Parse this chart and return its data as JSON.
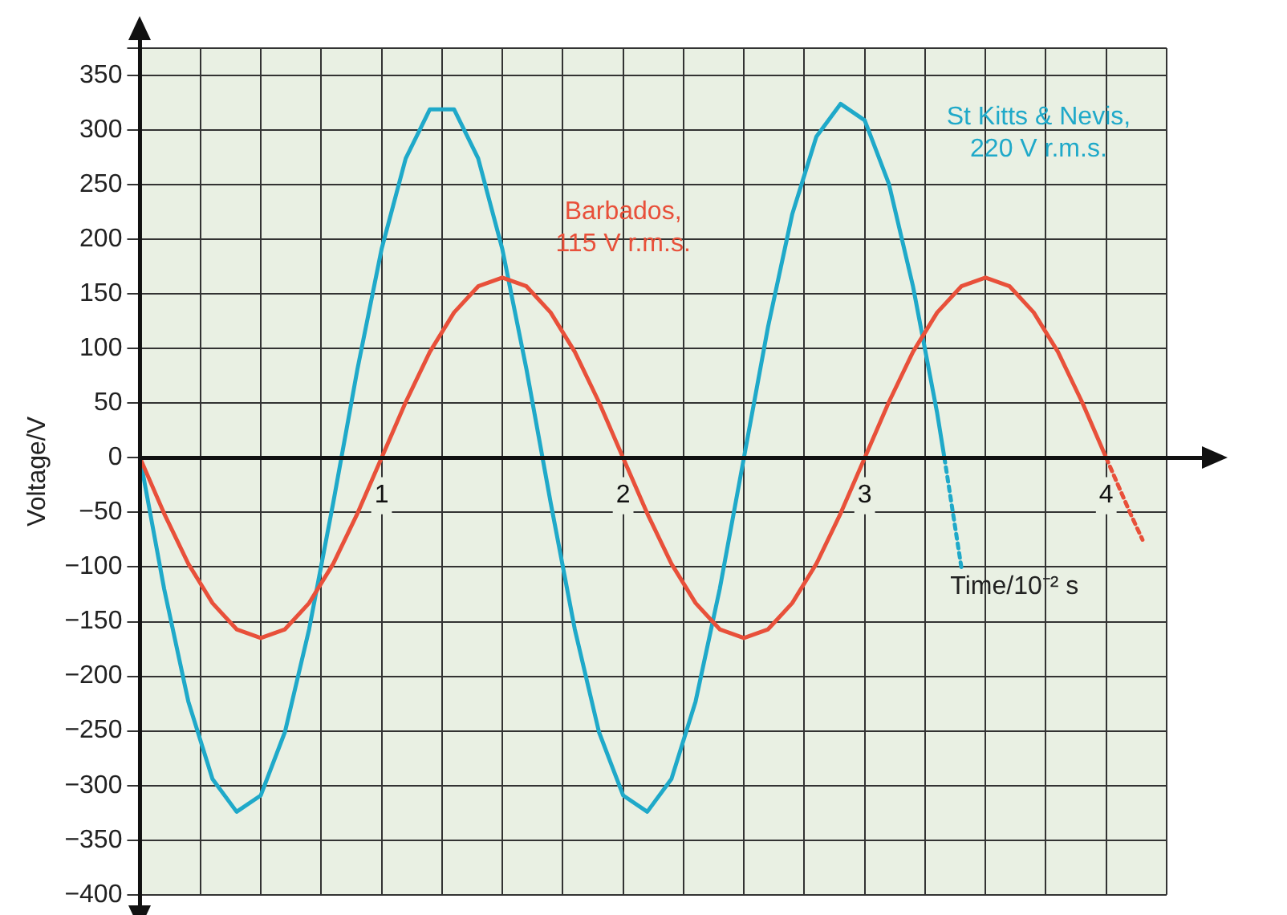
{
  "chart_data": {
    "type": "line",
    "xlabel": "Time/10⁻² s",
    "ylabel": "Voltage/V",
    "xlim": [
      0,
      4.25
    ],
    "ylim": [
      -400,
      375
    ],
    "xticks": [
      {
        "value": 0,
        "label": null
      },
      {
        "value": 0.25,
        "label": null
      },
      {
        "value": 0.5,
        "label": null
      },
      {
        "value": 0.75,
        "label": null
      },
      1,
      {
        "value": 1.25,
        "label": null
      },
      {
        "value": 1.5,
        "label": null
      },
      {
        "value": 1.75,
        "label": null
      },
      2,
      {
        "value": 2.25,
        "label": null
      },
      {
        "value": 2.5,
        "label": null
      },
      {
        "value": 2.75,
        "label": null
      },
      3,
      {
        "value": 3.25,
        "label": null
      },
      {
        "value": 3.5,
        "label": null
      },
      {
        "value": 3.75,
        "label": null
      },
      4,
      {
        "value": 4.25,
        "label": null
      }
    ],
    "yticks": [
      -400,
      -350,
      -300,
      -250,
      -200,
      -150,
      -100,
      -50,
      0,
      50,
      100,
      150,
      200,
      250,
      300,
      350,
      {
        "value": 375,
        "label": null
      }
    ],
    "grid": true,
    "legend": false,
    "marker": "none",
    "series": [
      {
        "name": "Barbados, 115 V r.m.s.",
        "color": "#e8503a",
        "line_style": "solid",
        "x": [
          0,
          0.1,
          0.2,
          0.3,
          0.4,
          0.5,
          0.6,
          0.7,
          0.8,
          0.9,
          1.0,
          1.1,
          1.2,
          1.3,
          1.4,
          1.5,
          1.6,
          1.7,
          1.8,
          1.9,
          2.0,
          2.1,
          2.2,
          2.3,
          2.4,
          2.5,
          2.6,
          2.7,
          2.8,
          2.9,
          3.0,
          3.1,
          3.2,
          3.3,
          3.4,
          3.5,
          3.6,
          3.7,
          3.8,
          3.9,
          4.0
        ],
        "values": [
          0,
          -51,
          -97,
          -133,
          -157,
          -165,
          -157,
          -133,
          -97,
          -51,
          0,
          51,
          97,
          133,
          157,
          165,
          157,
          133,
          97,
          51,
          0,
          -51,
          -97,
          -133,
          -157,
          -165,
          -157,
          -133,
          -97,
          -51,
          0,
          51,
          97,
          133,
          157,
          165,
          157,
          133,
          97,
          51,
          0
        ]
      },
      {
        "color": "#e8503a",
        "line_style": "dashed",
        "x": [
          4.0,
          4.1,
          4.15
        ],
        "values": [
          0,
          -51,
          -75
        ]
      },
      {
        "name": "St Kitts & Nevis, 220 V r.m.s.",
        "color": "#1fa9c9",
        "line_style": "solid",
        "x": [
          0,
          0.1,
          0.2,
          0.3,
          0.4,
          0.5,
          0.6,
          0.7,
          0.8,
          0.9,
          1.0,
          1.1,
          1.2,
          1.3,
          1.4,
          1.5,
          1.6,
          1.7,
          1.8,
          1.9,
          2.0,
          2.1,
          2.2,
          2.3,
          2.4,
          2.5,
          2.6,
          2.7,
          2.8,
          2.9,
          3.0,
          3.1,
          3.2,
          3.3,
          3.33
        ],
        "values": [
          0,
          -120,
          -223,
          -294,
          -324,
          -309,
          -251,
          -157,
          -41,
          81,
          191,
          274,
          319,
          319,
          274,
          191,
          81,
          -41,
          -157,
          -251,
          -309,
          -324,
          -294,
          -223,
          -120,
          0,
          120,
          223,
          294,
          324,
          309,
          251,
          157,
          41,
          0
        ]
      },
      {
        "color": "#1fa9c9",
        "line_style": "dashed",
        "x": [
          3.33,
          3.4
        ],
        "values": [
          0,
          -100
        ]
      }
    ]
  }
}
